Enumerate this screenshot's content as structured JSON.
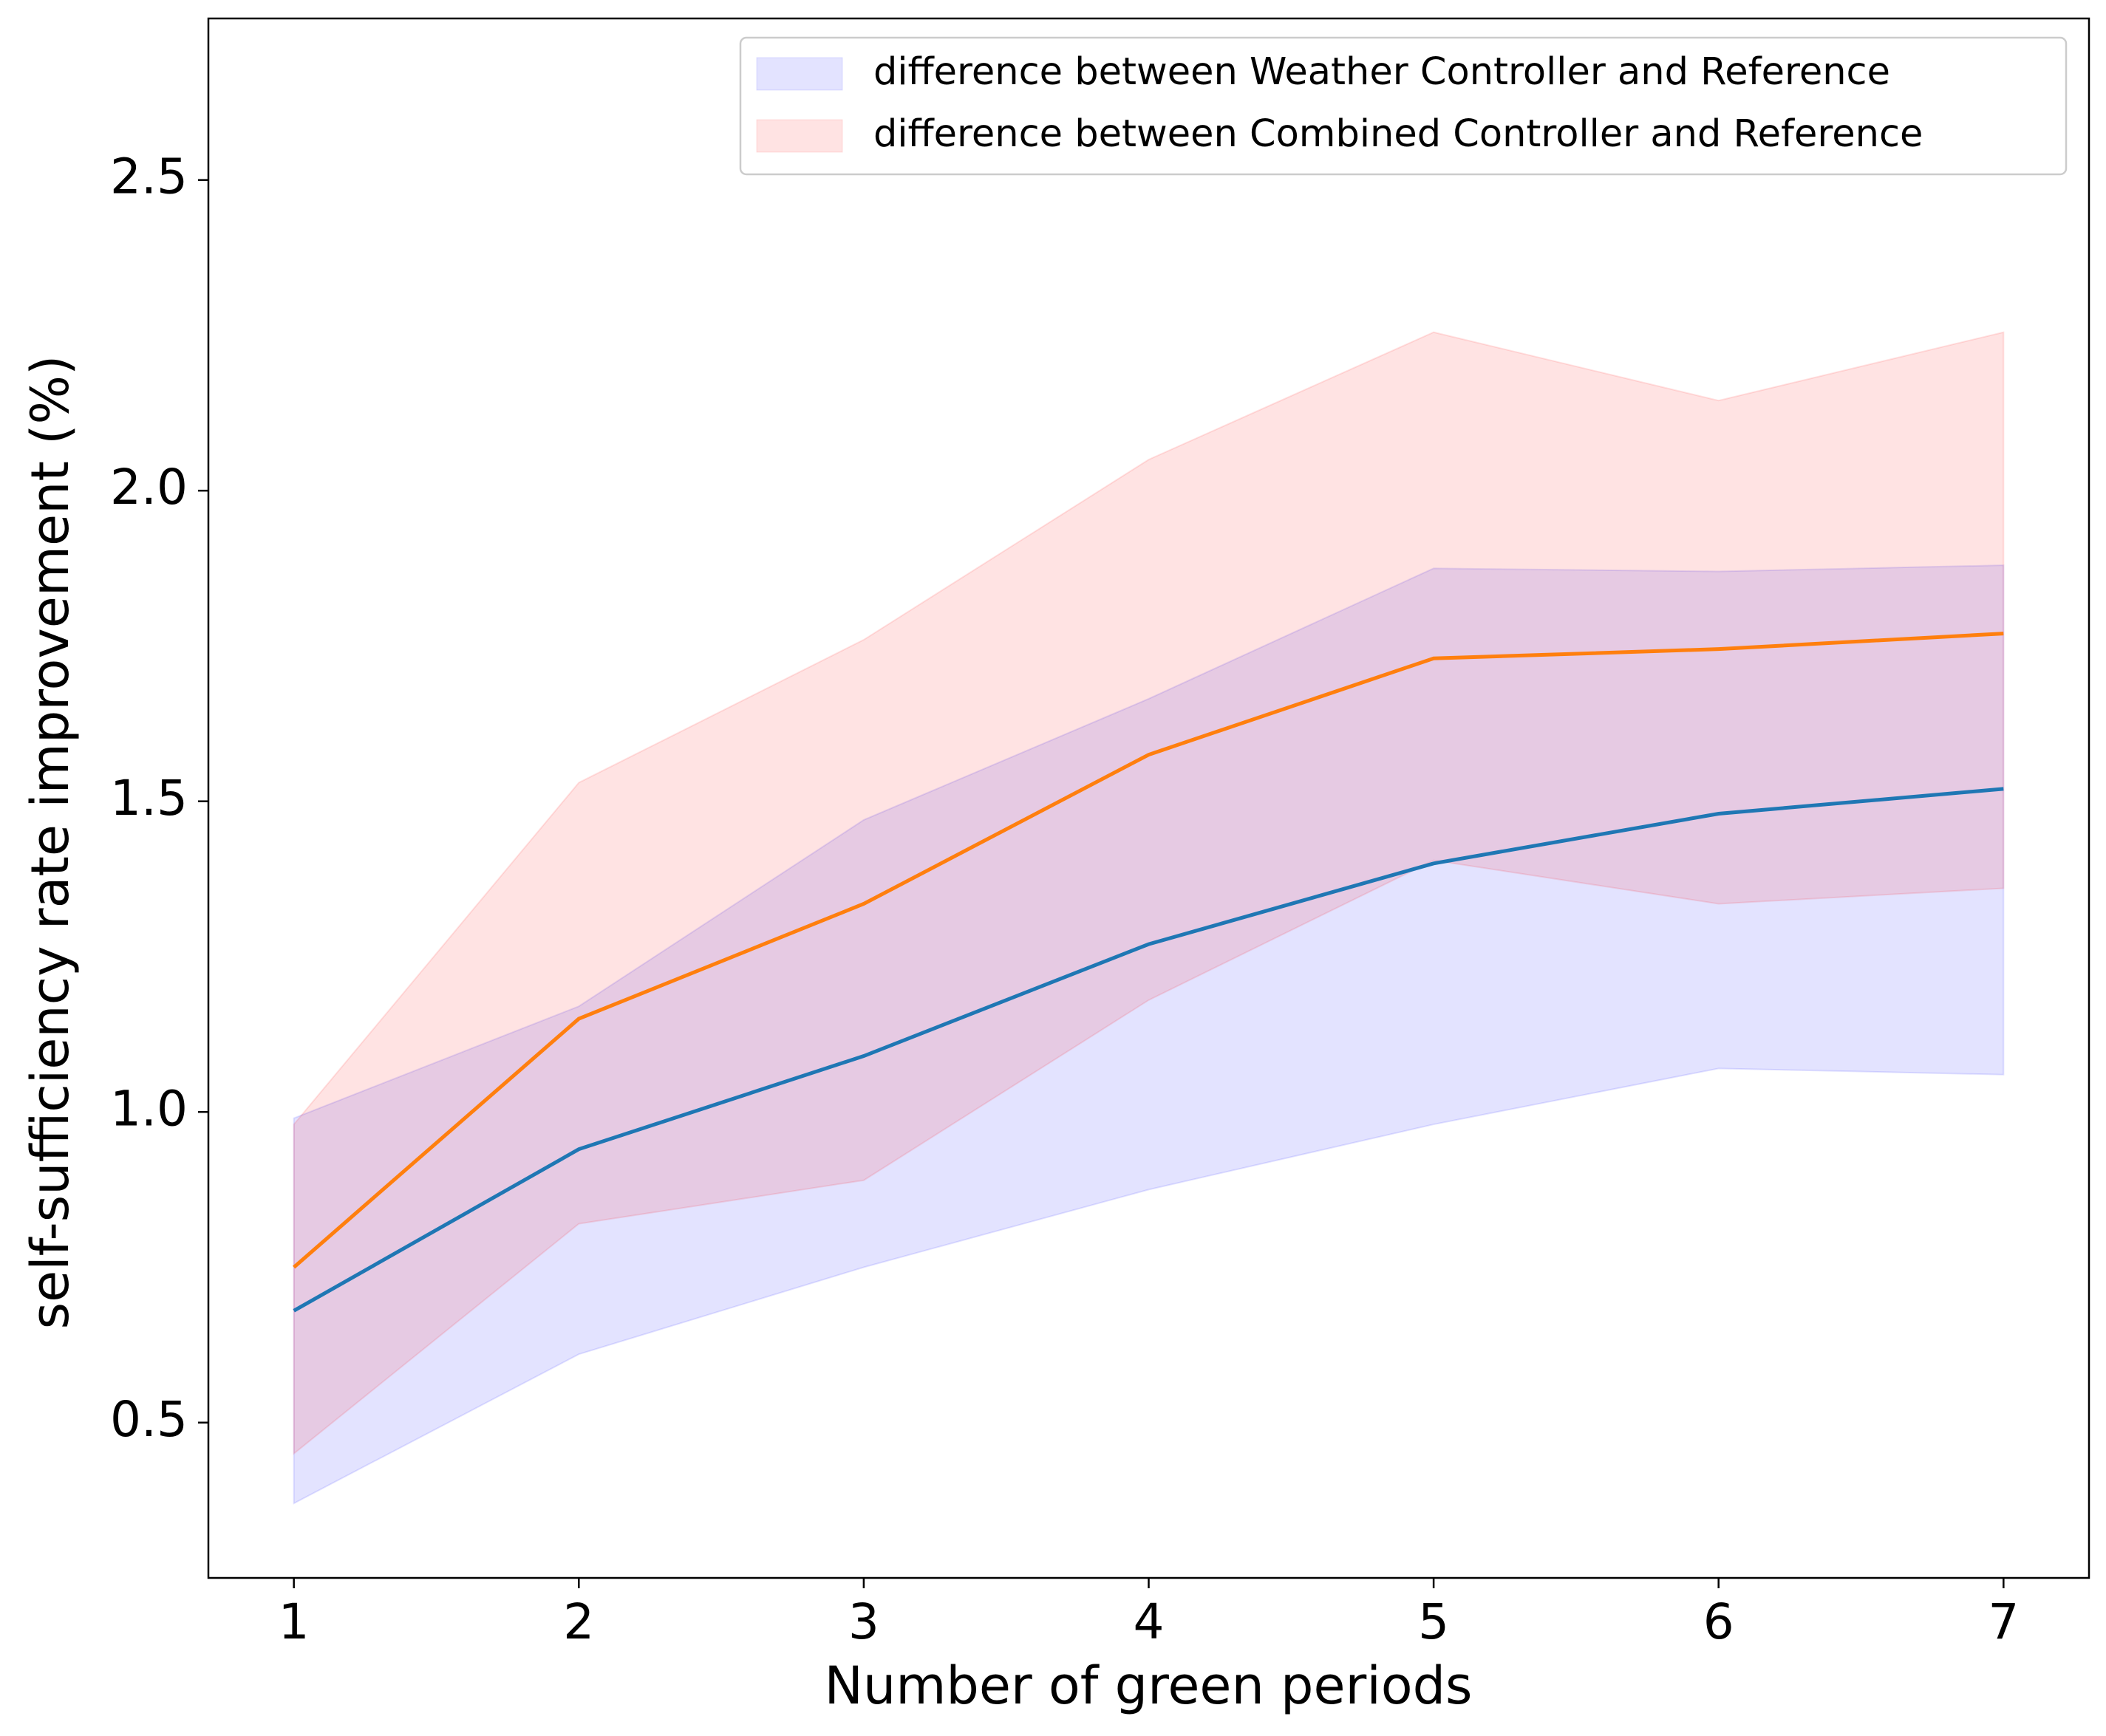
{
  "chart_data": {
    "type": "line",
    "x_label": "Number of green periods",
    "y_label": "self-sufficiency rate improvement (%)",
    "x": [
      1,
      2,
      3,
      4,
      5,
      6,
      7
    ],
    "series": [
      {
        "name": "difference between Weather Controller and Reference",
        "color": "#1f77b4",
        "band_color": "#0000ff",
        "values": [
          0.68,
          0.94,
          1.09,
          1.27,
          1.4,
          1.48,
          1.52
        ],
        "lower": [
          0.37,
          0.61,
          0.75,
          0.875,
          0.98,
          1.07,
          1.06
        ],
        "upper": [
          0.99,
          1.17,
          1.47,
          1.665,
          1.875,
          1.87,
          1.88
        ]
      },
      {
        "name": "difference between Combined Controller and Reference",
        "color": "#ff7f0e",
        "band_color": "#ff0000",
        "values": [
          0.75,
          1.15,
          1.335,
          1.575,
          1.73,
          1.745,
          1.77
        ],
        "lower": [
          0.45,
          0.82,
          0.89,
          1.18,
          1.405,
          1.335,
          1.36
        ],
        "upper": [
          0.98,
          1.53,
          1.76,
          2.05,
          2.255,
          2.145,
          2.255
        ]
      }
    ],
    "band_opacity": 0.11,
    "xlim": [
      0.7,
      7.3
    ],
    "xticks": [
      1,
      2,
      3,
      4,
      5,
      6,
      7
    ],
    "ylim": [
      0.25,
      2.76
    ],
    "yticks": [
      {
        "value": 0.5,
        "label": "0.5"
      },
      {
        "value": 1,
        "label": "1.0"
      },
      {
        "value": 1.5,
        "label": "1.5"
      },
      {
        "value": 2,
        "label": "2.0"
      },
      {
        "value": 2.5,
        "label": "2.5"
      }
    ],
    "legend": "upper right"
  }
}
